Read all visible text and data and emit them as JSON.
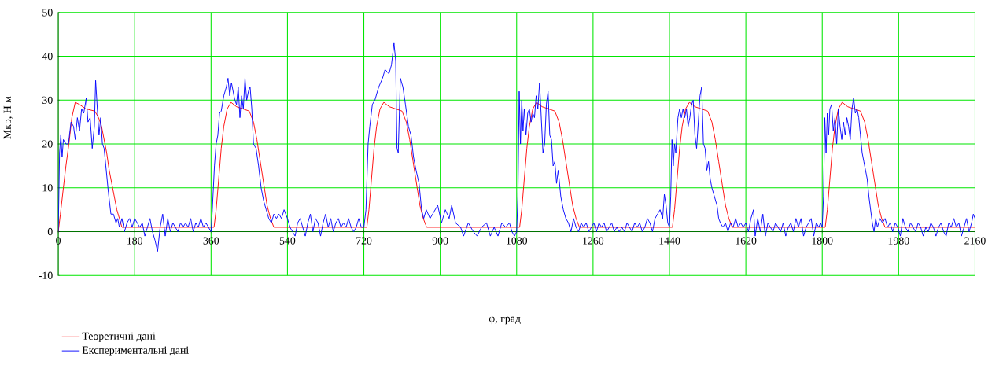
{
  "chart_data": {
    "type": "line",
    "xlabel": "φ, град",
    "ylabel": "Мкр, Н м",
    "xlim": [
      0,
      2160
    ],
    "ylim": [
      -10,
      50
    ],
    "xticks": [
      0,
      180,
      360,
      540,
      720,
      900,
      1080,
      1260,
      1440,
      1620,
      1800,
      1980,
      2160
    ],
    "yticks": [
      -10,
      0,
      10,
      20,
      30,
      40,
      50
    ],
    "grid": true,
    "legend": "bottom left",
    "series": [
      {
        "name": "Теоретичні дані",
        "color": "#ff0000",
        "x": [
          0,
          5,
          12,
          18,
          25,
          32,
          40,
          50,
          65,
          86,
          95,
          102,
          108,
          114,
          120,
          126,
          132,
          138,
          144,
          150,
          360,
          367,
          372,
          378,
          384,
          390,
          398,
          407,
          420,
          435,
          450,
          460,
          468,
          476,
          484,
          492,
          500,
          508,
          720,
          727,
          732,
          738,
          744,
          750,
          758,
          767,
          780,
          795,
          810,
          820,
          828,
          836,
          844,
          852,
          860,
          868,
          1080,
          1087,
          1092,
          1098,
          1104,
          1110,
          1118,
          1127,
          1140,
          1155,
          1170,
          1180,
          1188,
          1196,
          1204,
          1212,
          1220,
          1228,
          1440,
          1447,
          1452,
          1458,
          1464,
          1470,
          1478,
          1487,
          1500,
          1515,
          1530,
          1540,
          1548,
          1556,
          1564,
          1572,
          1580,
          1588,
          1800,
          1807,
          1812,
          1818,
          1824,
          1830,
          1838,
          1847,
          1860,
          1875,
          1890,
          1900,
          1908,
          1916,
          1924,
          1932,
          1940,
          1948,
          2160
        ],
        "values": [
          0,
          4,
          10,
          15,
          20,
          26,
          29.5,
          29,
          28,
          27.5,
          26,
          24,
          21,
          18,
          14,
          11,
          8,
          5,
          3,
          1,
          1,
          1,
          5,
          12,
          19,
          24,
          28,
          29.5,
          28.5,
          28,
          27.5,
          25,
          21,
          16,
          11,
          6,
          3,
          1,
          1,
          1,
          5,
          12,
          19,
          24,
          28,
          29.5,
          28.5,
          28,
          27.5,
          25,
          21,
          16,
          11,
          6,
          3,
          1,
          1,
          1,
          5,
          12,
          19,
          24,
          28,
          29.5,
          28.5,
          28,
          27.5,
          25,
          21,
          16,
          11,
          6,
          3,
          1,
          1,
          1,
          5,
          12,
          19,
          24,
          28,
          29.5,
          28.5,
          28,
          27.5,
          25,
          21,
          16,
          11,
          6,
          3,
          1,
          1,
          1,
          5,
          12,
          19,
          24,
          28,
          29.5,
          28.5,
          28,
          27.5,
          25,
          21,
          16,
          11,
          6,
          3,
          1,
          1
        ]
      },
      {
        "name": "Експериментальні дані",
        "color": "#0000ff",
        "x": [
          0,
          3,
          6,
          9,
          12,
          18,
          24,
          30,
          36,
          40,
          45,
          50,
          55,
          60,
          66,
          70,
          75,
          80,
          85,
          88,
          92,
          96,
          100,
          104,
          108,
          112,
          118,
          124,
          130,
          136,
          140,
          144,
          150,
          156,
          162,
          168,
          174,
          180,
          186,
          192,
          198,
          204,
          210,
          216,
          222,
          228,
          234,
          240,
          246,
          252,
          258,
          264,
          270,
          276,
          282,
          288,
          294,
          300,
          306,
          312,
          318,
          324,
          330,
          336,
          342,
          348,
          354,
          360,
          363,
          368,
          372,
          376,
          380,
          384,
          390,
          396,
          400,
          404,
          408,
          412,
          416,
          420,
          424,
          428,
          432,
          436,
          440,
          444,
          448,
          452,
          456,
          460,
          466,
          472,
          478,
          484,
          490,
          496,
          502,
          508,
          514,
          520,
          526,
          532,
          540,
          546,
          552,
          558,
          564,
          570,
          576,
          582,
          588,
          594,
          600,
          606,
          612,
          618,
          624,
          630,
          636,
          642,
          648,
          654,
          660,
          666,
          672,
          678,
          684,
          690,
          696,
          702,
          708,
          714,
          720,
          725,
          730,
          734,
          740,
          746,
          755,
          764,
          770,
          779,
          785,
          791,
          795,
          798,
          801,
          806,
          812,
          818,
          825,
          831,
          837,
          843,
          850,
          856,
          861,
          867,
          876,
          882,
          894,
          903,
          912,
          921,
          927,
          936,
          948,
          955,
          966,
          978,
          987,
          997,
          1009,
          1018,
          1027,
          1036,
          1045,
          1054,
          1063,
          1069,
          1075,
          1080,
          1083,
          1086,
          1089,
          1092,
          1095,
          1098,
          1102,
          1106,
          1110,
          1114,
          1118,
          1122,
          1126,
          1130,
          1134,
          1138,
          1142,
          1146,
          1150,
          1154,
          1158,
          1162,
          1166,
          1170,
          1174,
          1178,
          1184,
          1190,
          1196,
          1202,
          1208,
          1214,
          1220,
          1226,
          1232,
          1238,
          1244,
          1250,
          1256,
          1262,
          1268,
          1274,
          1280,
          1286,
          1292,
          1298,
          1304,
          1310,
          1316,
          1322,
          1328,
          1334,
          1340,
          1346,
          1352,
          1358,
          1364,
          1370,
          1376,
          1382,
          1388,
          1394,
          1400,
          1406,
          1412,
          1418,
          1424,
          1428,
          1432,
          1436,
          1440,
          1443,
          1446,
          1449,
          1452,
          1455,
          1460,
          1464,
          1468,
          1472,
          1476,
          1480,
          1484,
          1488,
          1492,
          1496,
          1500,
          1504,
          1508,
          1512,
          1516,
          1520,
          1524,
          1528,
          1532,
          1536,
          1540,
          1546,
          1552,
          1556,
          1560,
          1566,
          1572,
          1578,
          1584,
          1590,
          1596,
          1602,
          1608,
          1614,
          1620,
          1626,
          1632,
          1638,
          1642,
          1648,
          1654,
          1660,
          1666,
          1672,
          1678,
          1684,
          1690,
          1696,
          1702,
          1708,
          1714,
          1720,
          1726,
          1732,
          1738,
          1744,
          1750,
          1756,
          1762,
          1768,
          1774,
          1780,
          1786,
          1792,
          1796,
          1800,
          1803,
          1806,
          1809,
          1812,
          1815,
          1818,
          1822,
          1826,
          1830,
          1834,
          1838,
          1842,
          1846,
          1850,
          1854,
          1858,
          1862,
          1866,
          1870,
          1874,
          1878,
          1882,
          1886,
          1890,
          1894,
          1898,
          1902,
          1906,
          1910,
          1914,
          1918,
          1922,
          1926,
          1930,
          1936,
          1942,
          1948,
          1954,
          1960,
          1966,
          1972,
          1978,
          1984,
          1990,
          1996,
          2002,
          2008,
          2014,
          2020,
          2026,
          2032,
          2038,
          2044,
          2050,
          2056,
          2062,
          2068,
          2074,
          2080,
          2086,
          2092,
          2098,
          2104,
          2110,
          2116,
          2122,
          2128,
          2134,
          2140,
          2146,
          2152,
          2156,
          2160
        ],
        "values": [
          0,
          18,
          22,
          17,
          21,
          20,
          20,
          25,
          24,
          21,
          26,
          23,
          28,
          27,
          30.5,
          25,
          26,
          19,
          24,
          34.5,
          28,
          22,
          26,
          20,
          19,
          15,
          9,
          4,
          4,
          2,
          3,
          1,
          3,
          0,
          2,
          3,
          1,
          3,
          2,
          1,
          2,
          -1,
          1,
          3,
          0,
          -2,
          -4.5,
          1,
          4,
          -1,
          3,
          0,
          2,
          1,
          0,
          2,
          1,
          2,
          1,
          3,
          0,
          2,
          1,
          3,
          1,
          2,
          1,
          0,
          5,
          15,
          20,
          22,
          27,
          27.5,
          31,
          33,
          35,
          31,
          34,
          32,
          30,
          29,
          33,
          26,
          31,
          28,
          35,
          30,
          32,
          33,
          28,
          20,
          19,
          15,
          10,
          7,
          5,
          3,
          2,
          4,
          3,
          4,
          3,
          5,
          3,
          1,
          0,
          -1,
          2,
          3,
          1,
          -1,
          2,
          4,
          0,
          3,
          2,
          -1,
          2,
          4,
          1,
          3,
          0,
          2,
          3,
          1,
          2,
          1,
          3,
          1,
          0,
          1,
          3,
          1,
          1,
          5,
          20,
          24,
          29,
          30,
          33,
          35,
          37,
          36,
          38,
          43,
          39,
          19,
          18,
          35,
          33,
          29,
          24,
          22,
          17,
          14,
          11,
          5,
          3,
          5,
          3,
          4,
          6,
          2,
          5,
          3,
          6,
          2,
          1,
          -1,
          2,
          0,
          -1,
          1,
          2,
          -1,
          1,
          -1,
          2,
          1,
          2,
          0,
          -1,
          0,
          8,
          32,
          20,
          30,
          23,
          28,
          22,
          27,
          28,
          25,
          27,
          26,
          31,
          28,
          34,
          26,
          18,
          20,
          29,
          32,
          22,
          21,
          15,
          16,
          11,
          14,
          8,
          5,
          3,
          2,
          0,
          3,
          1,
          0,
          2,
          1,
          2,
          0,
          1,
          2,
          0,
          2,
          1,
          2,
          0,
          1,
          2,
          0,
          1,
          0,
          1,
          0,
          2,
          1,
          0,
          2,
          1,
          2,
          0,
          1,
          3,
          2,
          0,
          3,
          4,
          5,
          3,
          8.5,
          6,
          2,
          1,
          8,
          21,
          15,
          20,
          18,
          26,
          28,
          26,
          28,
          26,
          28,
          24,
          26,
          29,
          30,
          22,
          19,
          25,
          31,
          33,
          20,
          19,
          14,
          16,
          12,
          10,
          8,
          6,
          3,
          2,
          1,
          2,
          0,
          2,
          1,
          3,
          1,
          2,
          1,
          2,
          0,
          3,
          5,
          -1,
          3,
          0,
          4,
          -1,
          2,
          1,
          0,
          2,
          1,
          0,
          2,
          -1,
          1,
          2,
          0,
          3,
          1,
          3,
          -1,
          1,
          2,
          3,
          -1,
          2,
          1,
          2,
          1,
          8,
          26,
          18,
          27,
          22,
          28,
          29,
          23,
          26,
          20,
          28,
          24,
          21,
          25,
          22,
          26,
          24,
          21,
          28,
          30.5,
          27,
          28,
          26,
          22,
          18,
          16,
          14,
          12,
          8,
          5,
          2,
          0,
          3,
          1,
          3,
          2,
          3,
          1,
          2,
          0,
          2,
          1,
          -1,
          3,
          1,
          0,
          2,
          1,
          0,
          2,
          1,
          -1,
          1,
          0,
          2,
          1,
          -1,
          1,
          2,
          0,
          -1,
          2,
          1,
          3,
          1,
          2,
          -1,
          1,
          3,
          0,
          2,
          4,
          3
        ]
      }
    ]
  }
}
